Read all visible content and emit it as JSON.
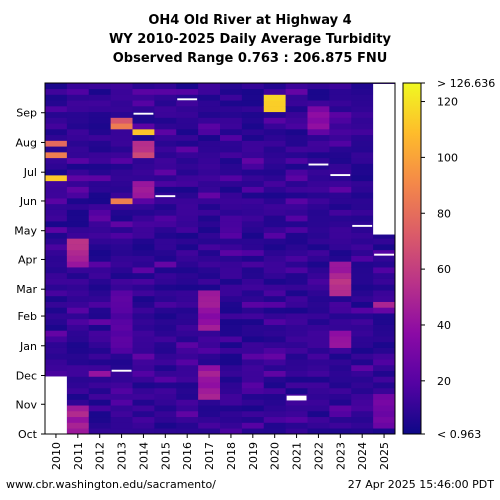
{
  "titles": [
    "OH4 Old River at Highway 4",
    "WY 2010-2025 Daily Average Turbidity",
    "Observed Range 0.763 : 206.875 FNU"
  ],
  "footer": {
    "left": "www.cbr.washington.edu/sacramento/",
    "right": "27 Apr 2025 15:46:00 PDT"
  },
  "chart_data": {
    "type": "heatmap",
    "x_categories": [
      "2010",
      "2011",
      "2012",
      "2013",
      "2014",
      "2015",
      "2016",
      "2017",
      "2018",
      "2019",
      "2020",
      "2021",
      "2022",
      "2023",
      "2024",
      "2025"
    ],
    "y_months": [
      "Oct",
      "Nov",
      "Dec",
      "Jan",
      "Feb",
      "Mar",
      "Apr",
      "May",
      "Jun",
      "Jul",
      "Aug",
      "Sep"
    ],
    "value_label": "Daily Average Turbidity (FNU)",
    "colorbar": {
      "min": 0.963,
      "max": 126.636,
      "ticks": [
        20,
        40,
        60,
        80,
        100,
        120
      ],
      "top_label": "> 126.636",
      "bottom_label": "< 0.963",
      "colormap": "plasma"
    },
    "missing_ranges": [
      {
        "year": "2010",
        "from_day": 0,
        "to_day": 60
      },
      {
        "year": "2025",
        "from_day": 208,
        "to_day": 365
      }
    ],
    "highlights": [
      {
        "year": "2020",
        "from_day": 340,
        "to_day": 351,
        "value": 120
      },
      {
        "year": "2014",
        "from_day": 313,
        "to_day": 317,
        "value": 115
      },
      {
        "year": "2010",
        "from_day": 266,
        "to_day": 269,
        "value": 110
      },
      {
        "year": "2010",
        "from_day": 290,
        "to_day": 294,
        "value": 105
      },
      {
        "year": "2013",
        "from_day": 241,
        "to_day": 245,
        "value": 95
      },
      {
        "year": "2013",
        "from_day": 322,
        "to_day": 325,
        "value": 85
      },
      {
        "year": "2010",
        "from_day": 303,
        "to_day": 306,
        "value": 80
      },
      {
        "year": "2014",
        "from_day": 290,
        "to_day": 302,
        "value": 65
      },
      {
        "year": "2011",
        "from_day": 177,
        "to_day": 199,
        "value": 55
      },
      {
        "year": "2023",
        "from_day": 146,
        "to_day": 176,
        "value": 55
      },
      {
        "year": "2017",
        "from_day": 111,
        "to_day": 145,
        "value": 45
      },
      {
        "year": "2017",
        "from_day": 40,
        "to_day": 70,
        "value": 50
      },
      {
        "year": "2011",
        "from_day": 10,
        "to_day": 27,
        "value": 50
      },
      {
        "year": "2011",
        "from_day": 0,
        "to_day": 5,
        "value": 55
      },
      {
        "year": "2022",
        "from_day": 320,
        "to_day": 340,
        "value": 40
      },
      {
        "year": "2023",
        "from_day": 90,
        "to_day": 105,
        "value": 40
      },
      {
        "year": "2014",
        "from_day": 250,
        "to_day": 262,
        "value": 45
      },
      {
        "year": "2025",
        "from_day": 135,
        "to_day": 138,
        "value": 50
      },
      {
        "year": "2025",
        "from_day": 10,
        "to_day": 40,
        "value": 30
      },
      {
        "year": "2012",
        "from_day": 60,
        "to_day": 63,
        "value": 40
      },
      {
        "year": "2013",
        "from_day": 85,
        "to_day": 150,
        "value": 22
      }
    ],
    "gaps": [
      {
        "year": "2014",
        "from_day": 333,
        "to_day": 335
      },
      {
        "year": "2015",
        "from_day": 247,
        "to_day": 249
      },
      {
        "year": "2016",
        "from_day": 348,
        "to_day": 350
      },
      {
        "year": "2013",
        "from_day": 65,
        "to_day": 67
      },
      {
        "year": "2021",
        "from_day": 35,
        "to_day": 40
      },
      {
        "year": "2022",
        "from_day": 280,
        "to_day": 282
      },
      {
        "year": "2023",
        "from_day": 269,
        "to_day": 271
      },
      {
        "year": "2024",
        "from_day": 216,
        "to_day": 218
      },
      {
        "year": "2025",
        "from_day": 186,
        "to_day": 188
      }
    ]
  }
}
